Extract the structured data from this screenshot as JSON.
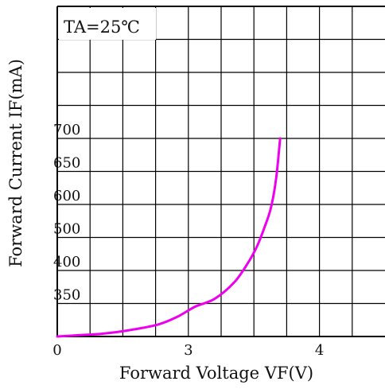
{
  "chart_data": {
    "type": "line",
    "annotation": "TA=25℃",
    "title": "",
    "xlabel": "Forward Voltage VF(V)",
    "ylabel": "Forward Current IF(mA)",
    "x_tick_labels": [
      "0",
      "3",
      "4"
    ],
    "y_tick_labels": [
      "350",
      "400",
      "500",
      "600",
      "650",
      "700"
    ],
    "grid": true,
    "legend": "none",
    "series": [
      {
        "color": "#ee00ee",
        "points": [
          {
            "x": 0.0,
            "y": 300
          },
          {
            "x": 0.5,
            "y": 302
          },
          {
            "x": 1.0,
            "y": 304
          },
          {
            "x": 1.6,
            "y": 309
          },
          {
            "x": 2.3,
            "y": 318
          },
          {
            "x": 2.75,
            "y": 330
          },
          {
            "x": 3.05,
            "y": 345
          },
          {
            "x": 3.2,
            "y": 357
          },
          {
            "x": 3.35,
            "y": 382
          },
          {
            "x": 3.45,
            "y": 420
          },
          {
            "x": 3.52,
            "y": 470
          },
          {
            "x": 3.58,
            "y": 530
          },
          {
            "x": 3.63,
            "y": 590
          },
          {
            "x": 3.67,
            "y": 640
          },
          {
            "x": 3.7,
            "y": 700
          }
        ]
      }
    ]
  }
}
